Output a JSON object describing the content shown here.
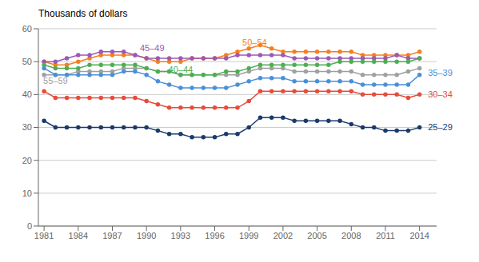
{
  "chart_data": {
    "type": "line",
    "title": "Thousands of dollars",
    "x": [
      1981,
      1982,
      1983,
      1984,
      1985,
      1986,
      1987,
      1988,
      1989,
      1990,
      1991,
      1992,
      1993,
      1994,
      1995,
      1996,
      1997,
      1998,
      1999,
      2000,
      2001,
      2002,
      2003,
      2004,
      2005,
      2006,
      2007,
      2008,
      2009,
      2010,
      2011,
      2012,
      2013,
      2014
    ],
    "series": [
      {
        "name": "50–54",
        "color": "#f57f20",
        "values": [
          50,
          49,
          49,
          50,
          51,
          52,
          52,
          52,
          52,
          51,
          50,
          50,
          50,
          51,
          51,
          51,
          52,
          53,
          54,
          55,
          54,
          53,
          53,
          53,
          53,
          53,
          53,
          53,
          52,
          52,
          52,
          52,
          52,
          53
        ]
      },
      {
        "name": "45–49",
        "color": "#9b59b6",
        "values": [
          50,
          50,
          51,
          52,
          52,
          53,
          53,
          53,
          52,
          51,
          51,
          51,
          51,
          51,
          51,
          51,
          51,
          52,
          52,
          52,
          52,
          52,
          51,
          51,
          51,
          51,
          51,
          51,
          51,
          51,
          51,
          52,
          51,
          51
        ]
      },
      {
        "name": "55–59",
        "color": "#a0a0a0",
        "values": [
          46,
          46,
          46,
          47,
          47,
          47,
          47,
          48,
          48,
          48,
          47,
          47,
          46,
          46,
          46,
          46,
          46,
          46,
          47,
          48,
          48,
          48,
          47,
          47,
          47,
          47,
          47,
          47,
          46,
          46,
          46,
          46,
          47,
          48
        ]
      },
      {
        "name": "40–44",
        "color": "#4caf50",
        "values": [
          49,
          48,
          48,
          48,
          49,
          49,
          49,
          49,
          49,
          48,
          47,
          47,
          46,
          46,
          46,
          46,
          47,
          47,
          48,
          49,
          49,
          49,
          49,
          49,
          49,
          49,
          50,
          50,
          50,
          50,
          50,
          50,
          50,
          51
        ]
      },
      {
        "name": "35–39",
        "color": "#4a90d9",
        "values": [
          48,
          46,
          46,
          46,
          46,
          46,
          46,
          47,
          47,
          46,
          44,
          43,
          42,
          42,
          42,
          42,
          42,
          43,
          44,
          45,
          45,
          45,
          44,
          44,
          44,
          44,
          44,
          44,
          43,
          43,
          43,
          43,
          43,
          46
        ]
      },
      {
        "name": "30–34",
        "color": "#e74c3c",
        "values": [
          41,
          39,
          39,
          39,
          39,
          39,
          39,
          39,
          39,
          38,
          37,
          36,
          36,
          36,
          36,
          36,
          36,
          36,
          38,
          41,
          41,
          41,
          41,
          41,
          41,
          41,
          41,
          41,
          40,
          40,
          40,
          40,
          39,
          40
        ]
      },
      {
        "name": "25–29",
        "color": "#1b3a6b",
        "values": [
          32,
          30,
          30,
          30,
          30,
          30,
          30,
          30,
          30,
          30,
          29,
          28,
          28,
          27,
          27,
          27,
          28,
          28,
          30,
          33,
          33,
          33,
          32,
          32,
          32,
          32,
          32,
          31,
          30,
          30,
          29,
          29,
          29,
          30
        ]
      }
    ],
    "annotations": [
      {
        "text": "50–54",
        "x": 1999.5,
        "y": 55.8,
        "color": "#f57f20"
      },
      {
        "text": "45–49",
        "x": 1990.5,
        "y": 54.2,
        "color": "#9b59b6"
      },
      {
        "text": "55–59",
        "x": 1982.0,
        "y": 44.3,
        "color": "#a0a0a0"
      },
      {
        "text": "40–44",
        "x": 1993.0,
        "y": 47.5,
        "color": "#4caf50"
      },
      {
        "text": "35–39",
        "x": 2014.6,
        "y": 46.5,
        "color": "#4a90d9"
      },
      {
        "text": "30–34",
        "x": 2014.6,
        "y": 40.0,
        "color": "#e74c3c"
      },
      {
        "text": "25–29",
        "x": 2014.6,
        "y": 30.0,
        "color": "#1b3a6b"
      }
    ],
    "xlim": [
      1980.5,
      2015.5
    ],
    "xticks": [
      1981,
      1984,
      1987,
      1990,
      1993,
      1996,
      1999,
      2002,
      2005,
      2008,
      2011,
      2014
    ],
    "ylim": [
      0,
      60
    ],
    "yticks": [
      0,
      10,
      20,
      30,
      40,
      50,
      60
    ],
    "grid": true,
    "marker": "circle"
  }
}
